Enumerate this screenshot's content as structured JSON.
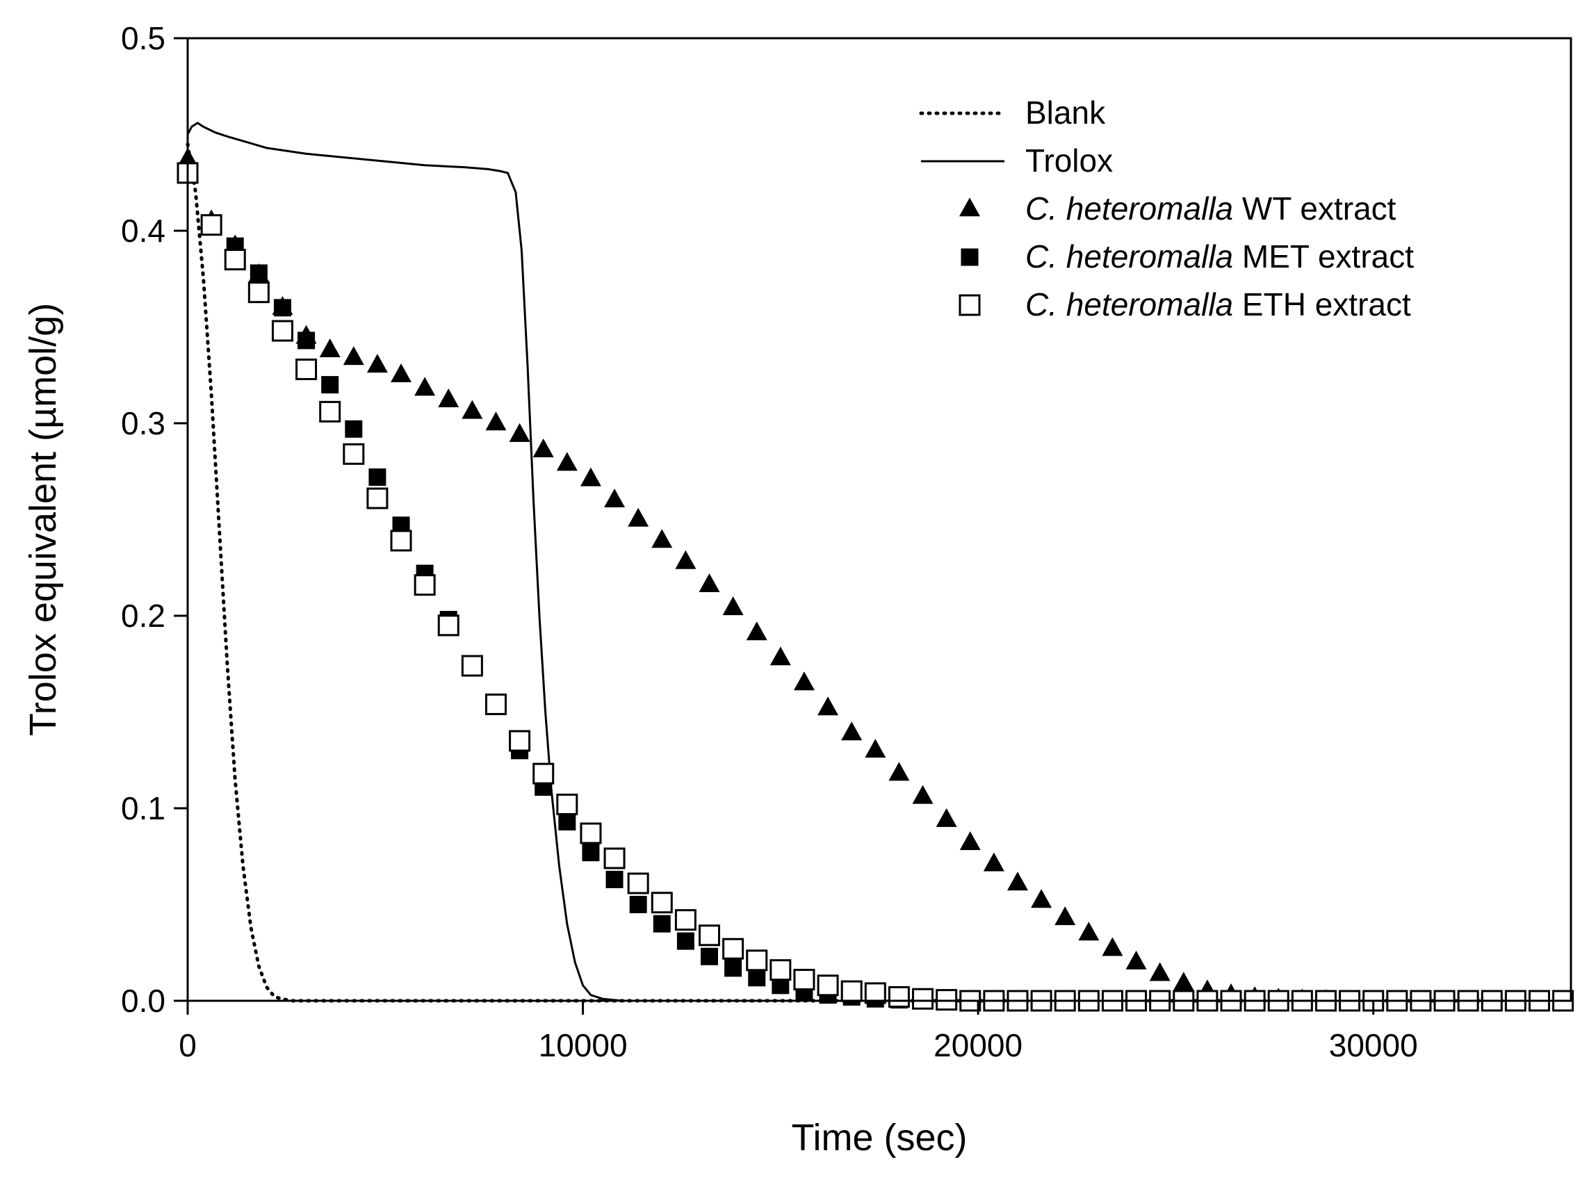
{
  "chart_data": {
    "type": "scatter",
    "title": "",
    "xlabel": "Time (sec)",
    "ylabel": "Trolox equivalent (µmol/g)",
    "xlim": [
      0,
      35000
    ],
    "ylim": [
      0,
      0.5
    ],
    "xticks": [
      0,
      10000,
      20000,
      30000
    ],
    "xtick_labels": [
      "0",
      "10000",
      "20000",
      "30000"
    ],
    "yticks": [
      0.0,
      0.1,
      0.2,
      0.3,
      0.4,
      0.5
    ],
    "ytick_labels": [
      "0.0",
      "0.1",
      "0.2",
      "0.3",
      "0.4",
      "0.5"
    ],
    "grid": false,
    "legend_position": "top-right",
    "series": [
      {
        "name": "Blank",
        "style": "dotted-line",
        "color": "#000000",
        "x": [
          0,
          200,
          400,
          600,
          800,
          1000,
          1200,
          1400,
          1600,
          1800,
          2000,
          2200,
          2600,
          3000,
          4000,
          6000,
          8000,
          10000,
          12000,
          15000,
          18000,
          22000,
          26000,
          30000,
          35000
        ],
        "y": [
          0.445,
          0.42,
          0.375,
          0.315,
          0.245,
          0.175,
          0.115,
          0.07,
          0.038,
          0.018,
          0.007,
          0.002,
          0.0,
          0.0,
          0.0,
          0.0,
          0.0,
          0.0,
          0.0,
          0.0,
          0.0,
          0.0,
          0.0,
          0.0,
          0.0
        ]
      },
      {
        "name": "Trolox",
        "style": "solid-line",
        "color": "#000000",
        "x": [
          0,
          100,
          250,
          400,
          700,
          1000,
          1500,
          2000,
          3000,
          4000,
          5000,
          6000,
          7000,
          7600,
          7900,
          8100,
          8300,
          8450,
          8600,
          8750,
          8900,
          9050,
          9200,
          9400,
          9600,
          9800,
          10000,
          10200,
          10500,
          11000,
          12000,
          15000,
          20000,
          25000,
          30000,
          35000
        ],
        "y": [
          0.45,
          0.454,
          0.456,
          0.454,
          0.451,
          0.449,
          0.446,
          0.443,
          0.44,
          0.438,
          0.436,
          0.434,
          0.433,
          0.432,
          0.431,
          0.43,
          0.42,
          0.39,
          0.33,
          0.26,
          0.2,
          0.15,
          0.11,
          0.07,
          0.04,
          0.02,
          0.008,
          0.003,
          0.001,
          0.0,
          0.0,
          0.0,
          0.0,
          0.0,
          0.0,
          0.0
        ]
      },
      {
        "name": "C. heteromalla WT extract",
        "name_italic": "C. heteromalla",
        "name_suffix": "WT extract",
        "style": "filled-triangle",
        "color": "#000000",
        "x": [
          0,
          600,
          1200,
          1800,
          2400,
          3000,
          3600,
          4200,
          4800,
          5400,
          6000,
          6600,
          7200,
          7800,
          8400,
          9000,
          9600,
          10200,
          10800,
          11400,
          12000,
          12600,
          13200,
          13800,
          14400,
          15000,
          15600,
          16200,
          16800,
          17400,
          18000,
          18600,
          19200,
          19800,
          20400,
          21000,
          21600,
          22200,
          22800,
          23400,
          24000,
          24600,
          25200,
          25800,
          26400,
          27000,
          27600,
          28200,
          28800
        ],
        "y": [
          0.437,
          0.405,
          0.392,
          0.377,
          0.36,
          0.345,
          0.338,
          0.334,
          0.33,
          0.325,
          0.318,
          0.312,
          0.306,
          0.3,
          0.294,
          0.286,
          0.279,
          0.271,
          0.26,
          0.25,
          0.239,
          0.228,
          0.216,
          0.204,
          0.191,
          0.178,
          0.165,
          0.152,
          0.139,
          0.13,
          0.118,
          0.106,
          0.094,
          0.082,
          0.071,
          0.061,
          0.052,
          0.043,
          0.035,
          0.027,
          0.02,
          0.014,
          0.009,
          0.005,
          0.003,
          0.0015,
          0.0007,
          0.0003,
          0.0
        ]
      },
      {
        "name": "C. heteromalla MET extract",
        "name_italic": "C. heteromalla",
        "name_suffix": "MET extract",
        "style": "filled-square",
        "color": "#000000",
        "x": [
          0,
          600,
          1200,
          1800,
          2400,
          3000,
          3600,
          4200,
          4800,
          5400,
          6000,
          6600,
          7200,
          7800,
          8400,
          9000,
          9600,
          10200,
          10800,
          11400,
          12000,
          12600,
          13200,
          13800,
          14400,
          15000,
          15600,
          16200,
          16800,
          17400,
          18000,
          18600,
          19200,
          19800,
          20400,
          21000,
          21600,
          22200,
          22800,
          23400,
          24000,
          24600,
          25200,
          25800,
          26400,
          27000,
          27600,
          28200,
          28800,
          29400,
          30000,
          30600,
          31200,
          31800,
          32400,
          33000,
          33600,
          34200,
          34800
        ],
        "y": [
          0.43,
          0.403,
          0.392,
          0.378,
          0.36,
          0.343,
          0.32,
          0.297,
          0.272,
          0.247,
          0.222,
          0.198,
          0.174,
          0.153,
          0.13,
          0.111,
          0.093,
          0.077,
          0.063,
          0.05,
          0.04,
          0.031,
          0.023,
          0.017,
          0.012,
          0.008,
          0.005,
          0.003,
          0.002,
          0.001,
          0.0005,
          0.0,
          0.0,
          0.0,
          0.0,
          0.0,
          0.0,
          0.0,
          0.0,
          0.0,
          0.0,
          0.0,
          0.0,
          0.0,
          0.0,
          0.0,
          0.0,
          0.0,
          0.0,
          0.0,
          0.0,
          0.0,
          0.0,
          0.0,
          0.0,
          0.0,
          0.0,
          0.0,
          0.0
        ]
      },
      {
        "name": "C. heteromalla ETH extract",
        "name_italic": "C. heteromalla",
        "name_suffix": "ETH extract",
        "style": "open-square",
        "color": "#000000",
        "x": [
          0,
          600,
          1200,
          1800,
          2400,
          3000,
          3600,
          4200,
          4800,
          5400,
          6000,
          6600,
          7200,
          7800,
          8400,
          9000,
          9600,
          10200,
          10800,
          11400,
          12000,
          12600,
          13200,
          13800,
          14400,
          15000,
          15600,
          16200,
          16800,
          17400,
          18000,
          18600,
          19200,
          19800,
          20400,
          21000,
          21600,
          22200,
          22800,
          23400,
          24000,
          24600,
          25200,
          25800,
          26400,
          27000,
          27600,
          28200,
          28800,
          29400,
          30000,
          30600,
          31200,
          31800,
          32400,
          33000,
          33600,
          34200,
          34800
        ],
        "y": [
          0.43,
          0.403,
          0.385,
          0.368,
          0.348,
          0.328,
          0.306,
          0.284,
          0.261,
          0.239,
          0.216,
          0.195,
          0.174,
          0.154,
          0.135,
          0.118,
          0.102,
          0.087,
          0.074,
          0.061,
          0.051,
          0.042,
          0.034,
          0.027,
          0.021,
          0.016,
          0.011,
          0.008,
          0.005,
          0.004,
          0.002,
          0.001,
          0.0005,
          0.0,
          0.0,
          0.0,
          0.0,
          0.0,
          0.0,
          0.0,
          0.0,
          0.0,
          0.0,
          0.0,
          0.0,
          0.0,
          0.0,
          0.0,
          0.0,
          0.0,
          0.0,
          0.0,
          0.0,
          0.0,
          0.0,
          0.0,
          0.0,
          0.0,
          0.0
        ]
      }
    ]
  }
}
